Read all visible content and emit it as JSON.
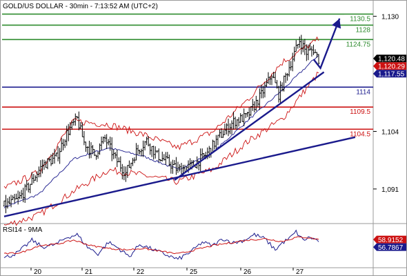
{
  "header": {
    "title": "GOLD/US DOLLAR - 30min - 7:13:52 AM (UTC+2)"
  },
  "chart_data": [
    {
      "type": "candlestick",
      "title": "GOLD/US DOLLAR - 30min - 7:13:52 AM (UTC+2)",
      "price_axis": {
        "ticks": [
          1091,
          1104,
          1117,
          1130
        ],
        "tick_labels": [
          "1,091",
          "1,104",
          "1,117",
          "1,130"
        ],
        "ylim": [
          1083.5,
          1131.5
        ]
      },
      "time_axis": {
        "labels": [
          "20",
          "21",
          "22",
          "25",
          "26",
          "27"
        ]
      },
      "levels": [
        {
          "value": 1130.5,
          "label": "1130.5",
          "color": "#2e8b2e",
          "kind": "resistance"
        },
        {
          "value": 1128,
          "label": "1128",
          "color": "#2e8b2e",
          "kind": "resistance"
        },
        {
          "value": 1124.75,
          "label": "1124.75",
          "color": "#2e8b2e",
          "kind": "resistance"
        },
        {
          "value": 1114,
          "label": "1114",
          "color": "#1a1a8c",
          "kind": "pivot"
        },
        {
          "value": 1109.5,
          "label": "1109.5",
          "color": "#cc1111",
          "kind": "support"
        },
        {
          "value": 1104.5,
          "label": "1104.5",
          "color": "#cc1111",
          "kind": "support"
        }
      ],
      "price_tags": [
        {
          "value": 1120.48,
          "label": "1,120.48",
          "bg": "#000000",
          "fg": "#ffffff"
        },
        {
          "value": 1120.29,
          "label": "1,120.29",
          "bg": "#cc1111",
          "fg": "#ffffff"
        },
        {
          "value": 1117.55,
          "label": "1,117.55",
          "bg": "#1a1a8c",
          "fg": "#ffffff"
        }
      ],
      "trendlines": [
        {
          "from": [
            0,
            1084.8
          ],
          "to": [
            202,
            1102.7
          ]
        },
        {
          "from": [
            98,
            1093.0
          ],
          "to": [
            184,
            1117.4
          ]
        }
      ],
      "arrows": [
        {
          "from": [
            182,
            1118.3
          ],
          "to": [
            193,
            1129.5
          ],
          "color": "#1a1a8c"
        }
      ],
      "series": [
        {
          "name": "",
          "style": "ohlc",
          "color": "#000000",
          "anchors": [
            [
              0,
              1087.2
            ],
            [
              8,
              1088.6
            ],
            [
              14,
              1091.6
            ],
            [
              22,
              1096.4
            ],
            [
              30,
              1098.1
            ],
            [
              36,
              1103.6
            ],
            [
              42,
              1106.8
            ],
            [
              46,
              1101.5
            ],
            [
              52,
              1098.7
            ],
            [
              58,
              1102.4
            ],
            [
              64,
              1097.8
            ],
            [
              70,
              1094.6
            ],
            [
              76,
              1099.4
            ],
            [
              82,
              1101.9
            ],
            [
              88,
              1098.6
            ],
            [
              94,
              1097.1
            ],
            [
              100,
              1095.3
            ],
            [
              108,
              1096.2
            ],
            [
              116,
              1098.6
            ],
            [
              124,
              1102.9
            ],
            [
              132,
              1106.2
            ],
            [
              140,
              1107.4
            ],
            [
              148,
              1112.3
            ],
            [
              154,
              1116.9
            ],
            [
              158,
              1112.3
            ],
            [
              164,
              1118.6
            ],
            [
              170,
              1124.6
            ],
            [
              174,
              1121.8
            ],
            [
              178,
              1122.5
            ],
            [
              181,
              1120.3
            ]
          ]
        },
        {
          "name": "",
          "style": "bollinger_mid",
          "color": "#1a1a8c",
          "anchors": [
            [
              0,
              1086.9
            ],
            [
              20,
              1089.8
            ],
            [
              40,
              1097.8
            ],
            [
              60,
              1100.3
            ],
            [
              80,
              1098.4
            ],
            [
              100,
              1095.4
            ],
            [
              120,
              1099.2
            ],
            [
              140,
              1106.4
            ],
            [
              160,
              1113.3
            ],
            [
              181,
              1121.3
            ]
          ]
        },
        {
          "name": "",
          "style": "bollinger_band",
          "color": "#cc1111",
          "anchors": [
            [
              0,
              1082.7
            ],
            [
              20,
              1085.1
            ],
            [
              40,
              1090.5
            ],
            [
              60,
              1095.3
            ],
            [
              80,
              1094.1
            ],
            [
              100,
              1092.6
            ],
            [
              120,
              1095.4
            ],
            [
              140,
              1101.7
            ],
            [
              160,
              1106.8
            ],
            [
              181,
              1117.2
            ]
          ]
        },
        {
          "name": "",
          "style": "bollinger_band",
          "color": "#cc1111",
          "anchors": [
            [
              0,
              1091.1
            ],
            [
              20,
              1094.8
            ],
            [
              40,
              1106.3
            ],
            [
              60,
              1105.6
            ],
            [
              80,
              1103.3
            ],
            [
              100,
              1100.3
            ],
            [
              120,
              1103.9
            ],
            [
              140,
              1111.1
            ],
            [
              160,
              1119.6
            ],
            [
              181,
              1124.8
            ]
          ]
        }
      ]
    },
    {
      "type": "line",
      "title": "RSI14 - 9MA",
      "ylim": [
        20,
        80
      ],
      "series": [
        {
          "name": "RSI14",
          "color": "#1a1a8c",
          "anchors": [
            [
              0,
              32
            ],
            [
              8,
              40
            ],
            [
              16,
              58
            ],
            [
              22,
              48
            ],
            [
              30,
              52
            ],
            [
              36,
              62
            ],
            [
              42,
              66
            ],
            [
              48,
              48
            ],
            [
              54,
              38
            ],
            [
              60,
              55
            ],
            [
              66,
              46
            ],
            [
              72,
              34
            ],
            [
              78,
              52
            ],
            [
              84,
              46
            ],
            [
              92,
              38
            ],
            [
              100,
              30
            ],
            [
              108,
              42
            ],
            [
              114,
              55
            ],
            [
              120,
              50
            ],
            [
              126,
              60
            ],
            [
              132,
              54
            ],
            [
              138,
              58
            ],
            [
              144,
              66
            ],
            [
              150,
              60
            ],
            [
              156,
              44
            ],
            [
              160,
              54
            ],
            [
              164,
              60
            ],
            [
              168,
              70
            ],
            [
              172,
              58
            ],
            [
              176,
              62
            ],
            [
              181,
              56.79
            ]
          ]
        },
        {
          "name": "9MA",
          "color": "#cc1111",
          "anchors": [
            [
              0,
              38
            ],
            [
              10,
              40
            ],
            [
              20,
              50
            ],
            [
              30,
              52
            ],
            [
              40,
              58
            ],
            [
              50,
              50
            ],
            [
              60,
              46
            ],
            [
              70,
              44
            ],
            [
              80,
              46
            ],
            [
              90,
              42
            ],
            [
              100,
              38
            ],
            [
              110,
              44
            ],
            [
              120,
              50
            ],
            [
              130,
              54
            ],
            [
              140,
              58
            ],
            [
              150,
              60
            ],
            [
              160,
              56
            ],
            [
              168,
              62
            ],
            [
              174,
              62
            ],
            [
              181,
              58.92
            ]
          ]
        }
      ],
      "tags": [
        {
          "value": 58.9152,
          "label": "58.9152",
          "bg": "#cc1111",
          "fg": "#ffffff"
        },
        {
          "value": 56.7867,
          "label": "56.7867",
          "bg": "#1a1a8c",
          "fg": "#ffffff"
        }
      ]
    }
  ]
}
